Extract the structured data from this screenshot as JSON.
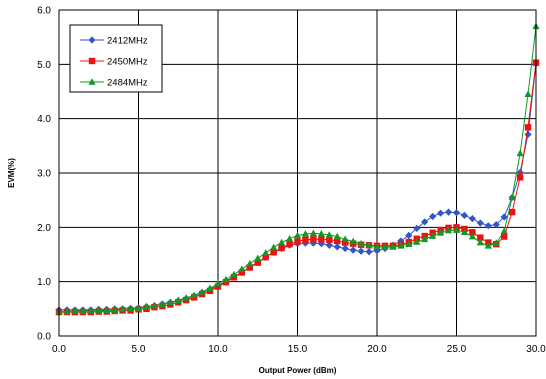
{
  "chart_data": {
    "type": "line",
    "title": "",
    "xlabel": "Output Power (dBm)",
    "ylabel": "EVM(%)",
    "xlim": [
      0,
      30
    ],
    "ylim": [
      0,
      6
    ],
    "xticks": [
      0,
      5,
      10,
      15,
      20,
      25,
      30
    ],
    "xtick_labels": [
      "0.0",
      "5.0",
      "10.0",
      "15.0",
      "20.0",
      "25.0",
      "30.0"
    ],
    "yticks": [
      0,
      1,
      2,
      3,
      4,
      5,
      6
    ],
    "ytick_labels": [
      "0.0",
      "1.0",
      "2.0",
      "3.0",
      "4.0",
      "5.0",
      "6.0"
    ],
    "grid": true,
    "legend_position": "top-left",
    "x": [
      0.0,
      0.5,
      1.0,
      1.5,
      2.0,
      2.5,
      3.0,
      3.5,
      4.0,
      4.5,
      5.0,
      5.5,
      6.0,
      6.5,
      7.0,
      7.5,
      8.0,
      8.5,
      9.0,
      9.5,
      10.0,
      10.5,
      11.0,
      11.5,
      12.0,
      12.5,
      13.0,
      13.5,
      14.0,
      14.5,
      15.0,
      15.5,
      16.0,
      16.5,
      17.0,
      17.5,
      18.0,
      18.5,
      19.0,
      19.5,
      20.0,
      20.5,
      21.0,
      21.5,
      22.0,
      22.5,
      23.0,
      23.5,
      24.0,
      24.5,
      25.0,
      25.5,
      26.0,
      26.5,
      27.0,
      27.5,
      28.0,
      28.5,
      29.0,
      29.5,
      30.0
    ],
    "series": [
      {
        "name": "2412MHz",
        "color": "#3355cc",
        "marker": "diamond",
        "values": [
          0.48,
          0.48,
          0.48,
          0.48,
          0.48,
          0.49,
          0.49,
          0.5,
          0.5,
          0.51,
          0.52,
          0.54,
          0.56,
          0.59,
          0.62,
          0.65,
          0.69,
          0.74,
          0.8,
          0.86,
          0.93,
          1.01,
          1.09,
          1.17,
          1.27,
          1.36,
          1.45,
          1.54,
          1.61,
          1.67,
          1.7,
          1.71,
          1.71,
          1.7,
          1.67,
          1.64,
          1.61,
          1.58,
          1.56,
          1.55,
          1.57,
          1.61,
          1.67,
          1.75,
          1.85,
          1.98,
          2.1,
          2.2,
          2.26,
          2.28,
          2.27,
          2.22,
          2.16,
          2.08,
          2.03,
          2.05,
          2.19,
          2.55,
          3.01,
          3.71,
          5.01
        ]
      },
      {
        "name": "2450MHz",
        "color": "#ee1111",
        "marker": "square",
        "values": [
          0.44,
          0.44,
          0.44,
          0.44,
          0.44,
          0.45,
          0.45,
          0.46,
          0.47,
          0.47,
          0.49,
          0.5,
          0.53,
          0.55,
          0.58,
          0.62,
          0.66,
          0.71,
          0.77,
          0.83,
          0.91,
          0.99,
          1.08,
          1.17,
          1.26,
          1.35,
          1.45,
          1.54,
          1.62,
          1.69,
          1.74,
          1.77,
          1.78,
          1.78,
          1.77,
          1.75,
          1.72,
          1.7,
          1.68,
          1.67,
          1.66,
          1.66,
          1.66,
          1.68,
          1.73,
          1.79,
          1.84,
          1.9,
          1.95,
          1.99,
          2.0,
          1.97,
          1.91,
          1.81,
          1.72,
          1.69,
          1.83,
          2.28,
          2.92,
          3.84,
          5.03
        ]
      },
      {
        "name": "2484MHz",
        "color": "#119922",
        "marker": "triangle",
        "values": [
          0.45,
          0.45,
          0.46,
          0.46,
          0.46,
          0.47,
          0.47,
          0.48,
          0.49,
          0.5,
          0.51,
          0.53,
          0.56,
          0.58,
          0.62,
          0.66,
          0.7,
          0.75,
          0.81,
          0.88,
          0.96,
          1.04,
          1.13,
          1.23,
          1.33,
          1.43,
          1.53,
          1.63,
          1.72,
          1.79,
          1.85,
          1.88,
          1.89,
          1.88,
          1.86,
          1.83,
          1.78,
          1.74,
          1.7,
          1.67,
          1.64,
          1.64,
          1.64,
          1.66,
          1.69,
          1.73,
          1.78,
          1.84,
          1.9,
          1.94,
          1.95,
          1.91,
          1.83,
          1.72,
          1.66,
          1.71,
          1.93,
          2.55,
          3.36,
          4.45,
          5.7
        ]
      }
    ]
  }
}
